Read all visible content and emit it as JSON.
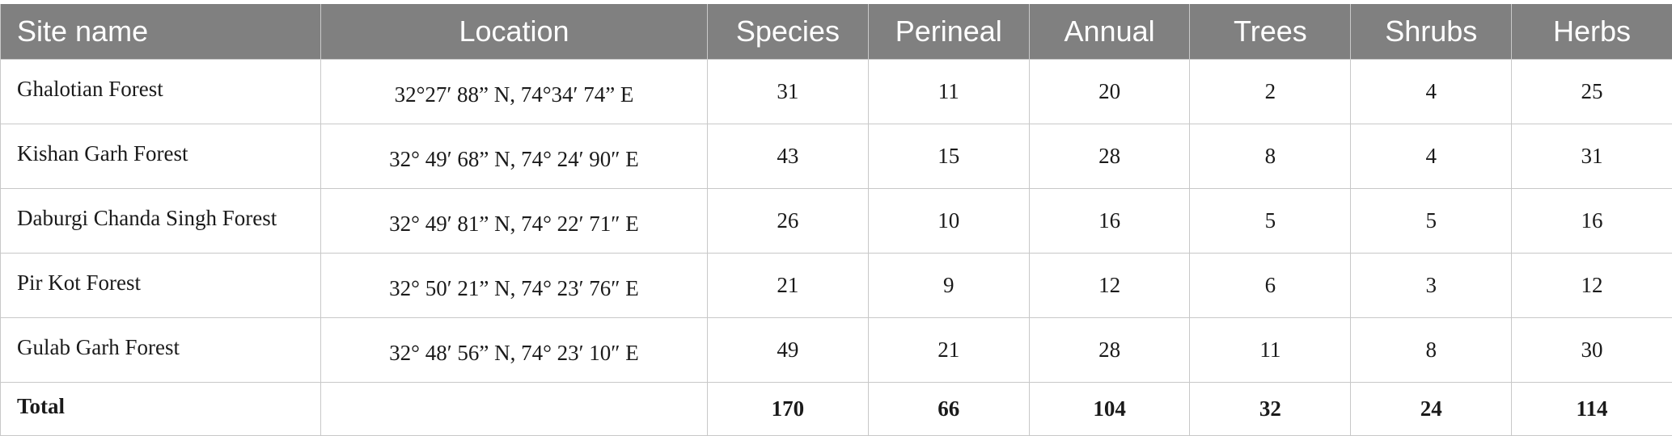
{
  "table": {
    "headers": [
      "Site name",
      "Location",
      "Species",
      "Perineal",
      "Annual",
      "Trees",
      "Shrubs",
      "Herbs"
    ],
    "rows": [
      {
        "site": "Ghalotian Forest",
        "location": "32°27′ 88” N, 74°34′ 74” E",
        "species": "31",
        "perineal": "11",
        "annual": "20",
        "trees": "2",
        "shrubs": "4",
        "herbs": "25"
      },
      {
        "site": "Kishan Garh Forest",
        "location": "32° 49′ 68” N, 74° 24′ 90″ E",
        "species": "43",
        "perineal": "15",
        "annual": "28",
        "trees": "8",
        "shrubs": "4",
        "herbs": "31"
      },
      {
        "site": "Daburgi Chanda Singh Forest",
        "location": "32° 49′ 81” N, 74° 22′ 71″ E",
        "species": "26",
        "perineal": "10",
        "annual": "16",
        "trees": "5",
        "shrubs": "5",
        "herbs": "16"
      },
      {
        "site": "Pir Kot Forest",
        "location": "32° 50′ 21” N, 74° 23′ 76″ E",
        "species": "21",
        "perineal": "9",
        "annual": "12",
        "trees": "6",
        "shrubs": "3",
        "herbs": "12"
      },
      {
        "site": "Gulab Garh Forest",
        "location": "32° 48′ 56” N, 74° 23′ 10″ E",
        "species": "49",
        "perineal": "21",
        "annual": "28",
        "trees": "11",
        "shrubs": "8",
        "herbs": "30"
      }
    ],
    "total": {
      "label": "Total",
      "location": "",
      "species": "170",
      "perineal": "66",
      "annual": "104",
      "trees": "32",
      "shrubs": "24",
      "herbs": "114"
    }
  },
  "colors": {
    "header_background": "#808080",
    "header_text": "#ffffff",
    "grid_line": "#c8c8c8"
  }
}
